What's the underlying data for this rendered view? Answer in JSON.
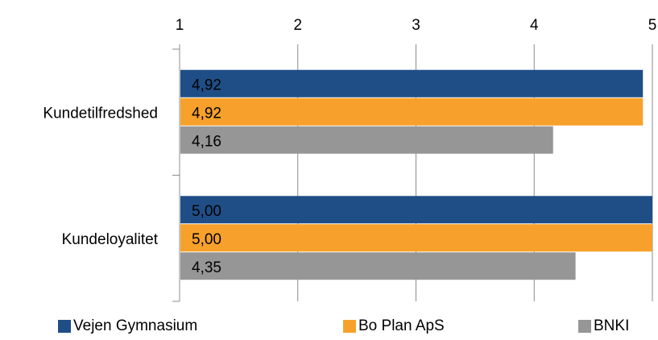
{
  "chart_data": {
    "type": "bar",
    "orientation": "horizontal",
    "categories": [
      "Kundetilfredshed",
      "Kundeloyalitet"
    ],
    "series": [
      {
        "name": "Vejen Gymnasium",
        "values": [
          4.92,
          5.0
        ],
        "labels": [
          "4,92",
          "5,00"
        ],
        "color": "#1F4E87"
      },
      {
        "name": "Bo Plan ApS",
        "values": [
          4.92,
          5.0
        ],
        "labels": [
          "4,92",
          "5,00"
        ],
        "color": "#F7A12C"
      },
      {
        "name": "BNKI",
        "values": [
          4.16,
          4.35
        ],
        "labels": [
          "4,16",
          "4,35"
        ],
        "color": "#969696"
      }
    ],
    "xlim": [
      1,
      5
    ],
    "xticks": [
      1,
      2,
      3,
      4,
      5
    ],
    "xtick_labels": [
      "1",
      "2",
      "3",
      "4",
      "5"
    ],
    "x_axis_position": "top",
    "grid": true,
    "legend_position": "bottom"
  }
}
